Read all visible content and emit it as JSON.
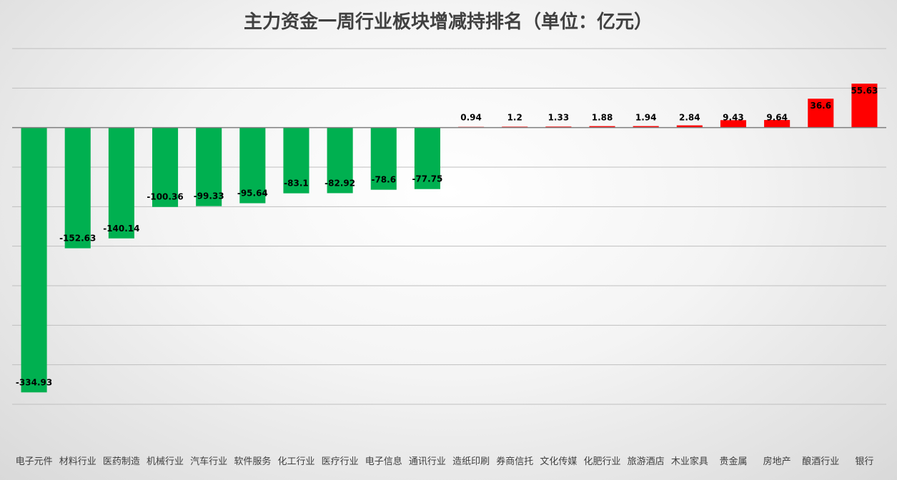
{
  "chart_data": {
    "type": "bar",
    "title": "主力资金一周行业板块增减持排名（单位：亿元）",
    "xlabel": "",
    "ylabel": "",
    "categories": [
      "电子元件",
      "材料行业",
      "医药制造",
      "机械行业",
      "汽车行业",
      "软件服务",
      "化工行业",
      "医疗行业",
      "电子信息",
      "通讯行业",
      "造纸印刷",
      "券商信托",
      "文化传媒",
      "化肥行业",
      "旅游酒店",
      "木业家具",
      "贵金属",
      "房地产",
      "酿酒行业",
      "银行"
    ],
    "values": [
      -334.93,
      -152.63,
      -140.14,
      -100.36,
      -99.33,
      -95.64,
      -83.1,
      -82.92,
      -78.6,
      -77.75,
      0.94,
      1.2,
      1.33,
      1.88,
      1.94,
      2.84,
      9.43,
      9.64,
      36.6,
      55.63
    ],
    "value_labels": [
      "-334.93",
      "-152.63",
      "-140.14",
      "-100.36",
      "-99.33",
      "-95.64",
      "-83.1",
      "-82.92",
      "-78.6",
      "-77.75",
      "0.94",
      "1.2",
      "1.33",
      "1.88",
      "1.94",
      "2.84",
      "9.43",
      "9.64",
      "36.6",
      "55.63"
    ],
    "ylim": [
      -350,
      100
    ],
    "gridlines": true,
    "axis_tick_labels_shown": false,
    "legend": "none",
    "colors": {
      "positive": "#ff0000",
      "negative": "#00b050"
    }
  }
}
